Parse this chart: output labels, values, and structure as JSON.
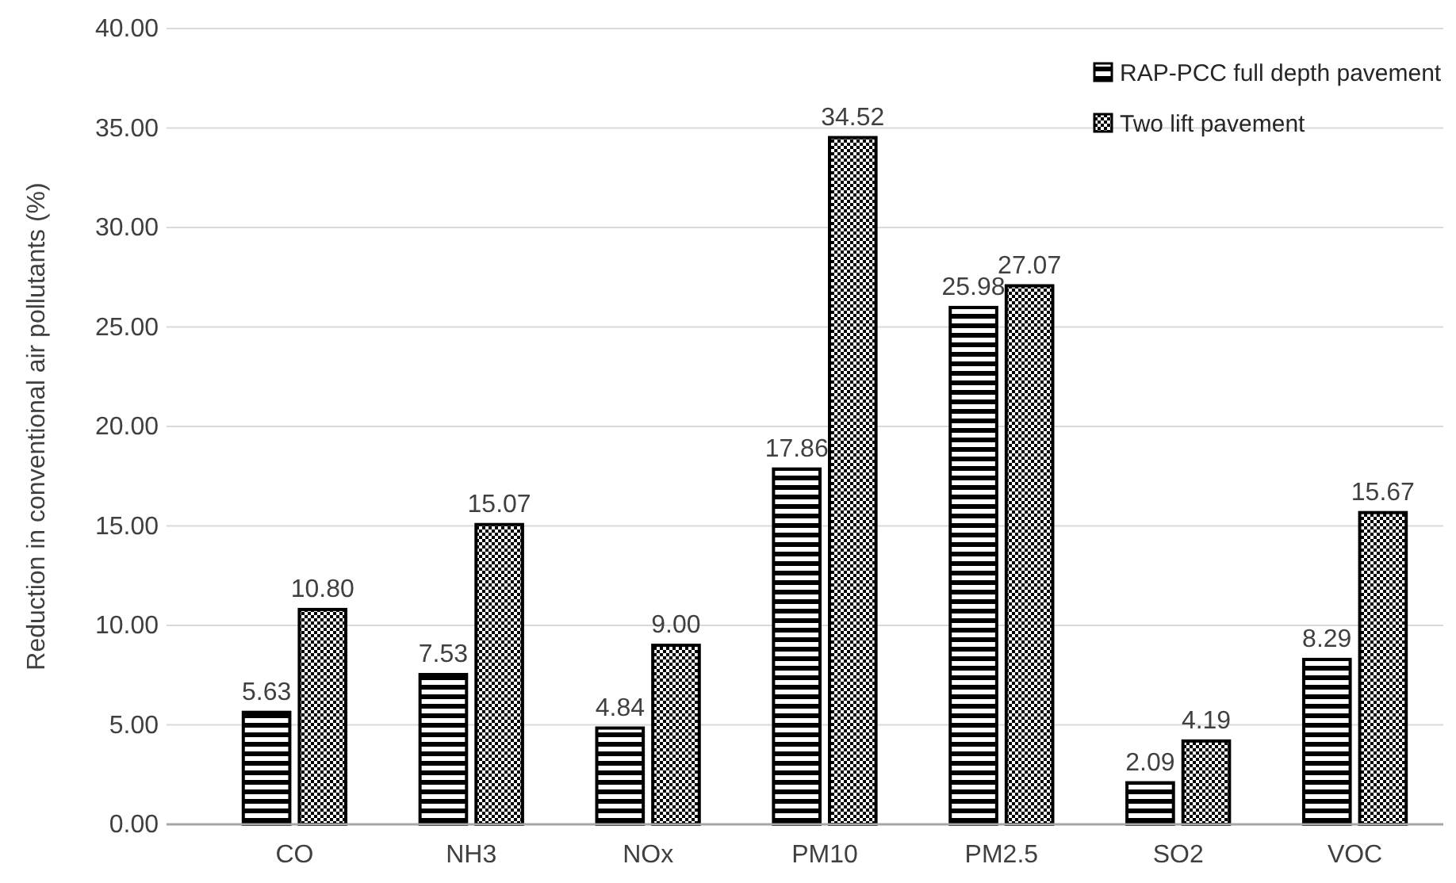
{
  "chart_data": {
    "type": "bar",
    "ylabel": "Reduction in conventional air pollutants (%)",
    "categories": [
      "CO",
      "NH3",
      "NOx",
      "PM10",
      "PM2.5",
      "SO2",
      "VOC"
    ],
    "series": [
      {
        "name": "RAP-PCC full depth pavement",
        "color": "#000000",
        "values": [
          5.63,
          7.53,
          4.84,
          17.86,
          25.98,
          2.09,
          8.29
        ],
        "value_labels": [
          "5.63",
          "7.53",
          "4.84",
          "17.86",
          "25.98",
          "2.09",
          "8.29"
        ]
      },
      {
        "name": "Two lift pavement",
        "color": "#000000",
        "values": [
          10.8,
          15.07,
          9.0,
          34.52,
          27.07,
          4.19,
          15.67
        ],
        "value_labels": [
          "10.80",
          "15.07",
          "9.00",
          "34.52",
          "27.07",
          "4.19",
          "15.67"
        ]
      }
    ],
    "ylim": [
      0,
      40
    ],
    "yticks": [
      {
        "value": 0,
        "label": "0.00"
      },
      {
        "value": 5,
        "label": "5.00"
      },
      {
        "value": 10,
        "label": "10.00"
      },
      {
        "value": 15,
        "label": "15.00"
      },
      {
        "value": 20,
        "label": "20.00"
      },
      {
        "value": 25,
        "label": "25.00"
      },
      {
        "value": 30,
        "label": "30.00"
      },
      {
        "value": 35,
        "label": "35.00"
      },
      {
        "value": 40,
        "label": "40.00"
      }
    ],
    "grid": "y",
    "legend": "top right"
  }
}
